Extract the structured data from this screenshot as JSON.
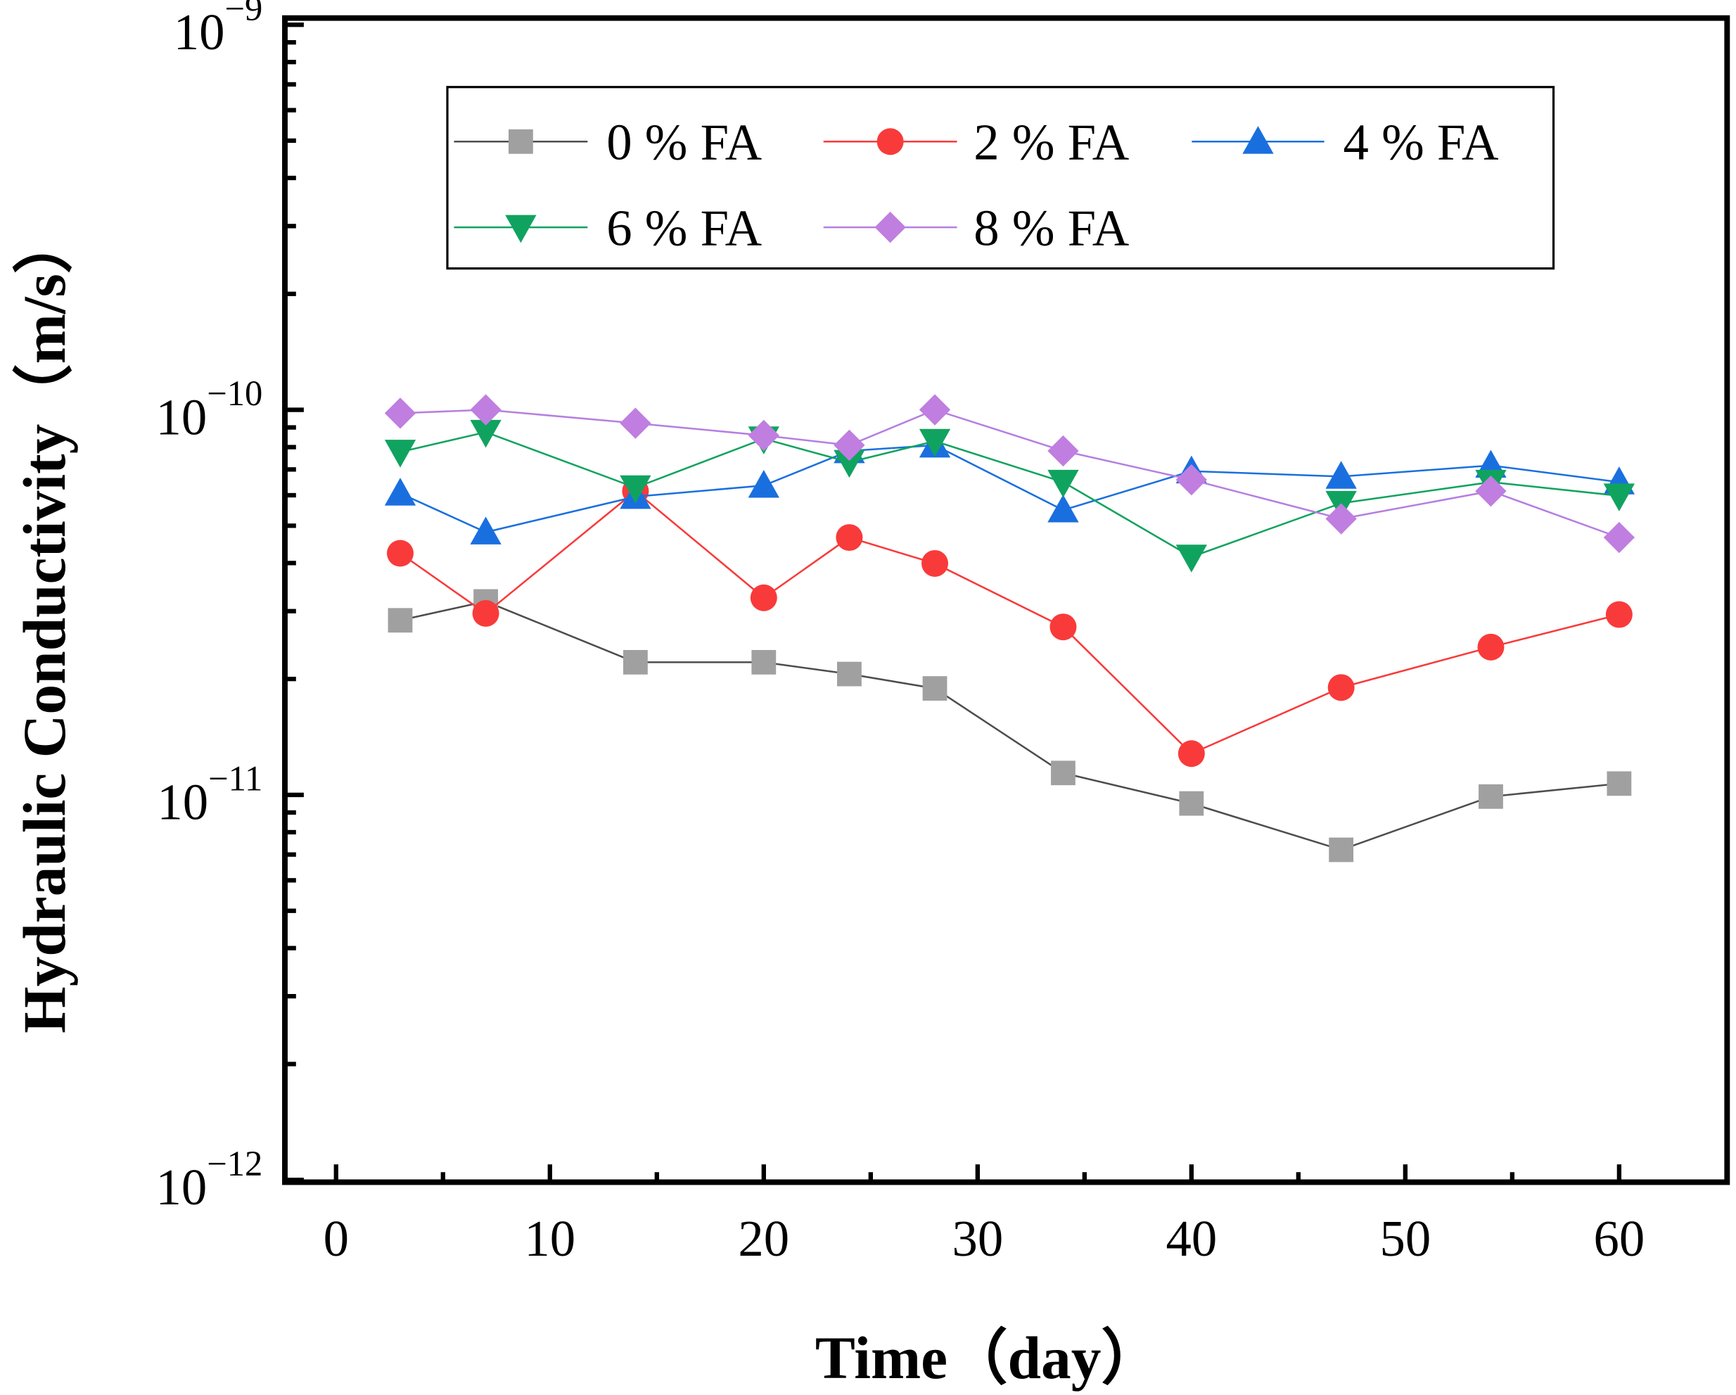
{
  "chart_data": {
    "type": "line",
    "xlabel": "Time（day）",
    "ylabel": "Hydraulic Conductivity（m/s）",
    "xlim": [
      -2.5,
      65
    ],
    "ylim": [
      1e-12,
      1e-09
    ],
    "yscale": "log",
    "xticks": [
      0,
      10,
      20,
      30,
      40,
      50,
      60
    ],
    "xtick_labels": [
      "0",
      "10",
      "20",
      "30",
      "40",
      "50",
      "60"
    ],
    "yticks": [
      {
        "value": 1e-09,
        "base": "10",
        "exp": "−9"
      },
      {
        "value": 1e-10,
        "base": "10",
        "exp": "−10"
      },
      {
        "value": 1e-11,
        "base": "10",
        "exp": "−11"
      },
      {
        "value": 1e-12,
        "base": "10",
        "exp": "−12"
      }
    ],
    "grid": false,
    "legend_position": "top-center",
    "x": [
      3,
      7,
      14,
      20,
      24,
      28,
      34,
      40,
      47,
      54,
      60
    ],
    "series": [
      {
        "name": "0 % FA",
        "marker": "square",
        "color": "#a0a0a0",
        "line_color": "#4d4d4d",
        "values": [
          2.84e-11,
          3.18e-11,
          2.21e-11,
          2.21e-11,
          2.06e-11,
          1.89e-11,
          1.14e-11,
          9.5e-12,
          7.2e-12,
          9.9e-12,
          1.07e-11
        ]
      },
      {
        "name": "2 % FA",
        "marker": "circle",
        "color": "#f93a3a",
        "line_color": "#f93a3a",
        "values": [
          4.24e-11,
          2.96e-11,
          6.15e-11,
          3.25e-11,
          4.66e-11,
          3.99e-11,
          2.73e-11,
          1.28e-11,
          1.9e-11,
          2.42e-11,
          2.94e-11
        ]
      },
      {
        "name": "4 % FA",
        "marker": "triangle-up",
        "color": "#1a6fdf",
        "line_color": "#1a6fdf",
        "values": [
          6.07e-11,
          4.81e-11,
          5.95e-11,
          6.36e-11,
          7.82e-11,
          8.09e-11,
          5.49e-11,
          6.93e-11,
          6.71e-11,
          7.17e-11,
          6.49e-11
        ]
      },
      {
        "name": "6 % FA",
        "marker": "triangle-down",
        "color": "#10a35f",
        "line_color": "#10a35f",
        "values": [
          7.77e-11,
          8.75e-11,
          6.28e-11,
          8.41e-11,
          7.31e-11,
          8.29e-11,
          6.49e-11,
          4.15e-11,
          5.72e-11,
          6.49e-11,
          5.98e-11
        ]
      },
      {
        "name": "8 % FA",
        "marker": "diamond",
        "color": "#c07ee0",
        "line_color": "#b57fe0",
        "values": [
          9.8e-11,
          1e-10,
          9.23e-11,
          8.58e-11,
          8.09e-11,
          1e-10,
          7.82e-11,
          6.58e-11,
          5.21e-11,
          6.15e-11,
          4.66e-11
        ]
      }
    ]
  }
}
